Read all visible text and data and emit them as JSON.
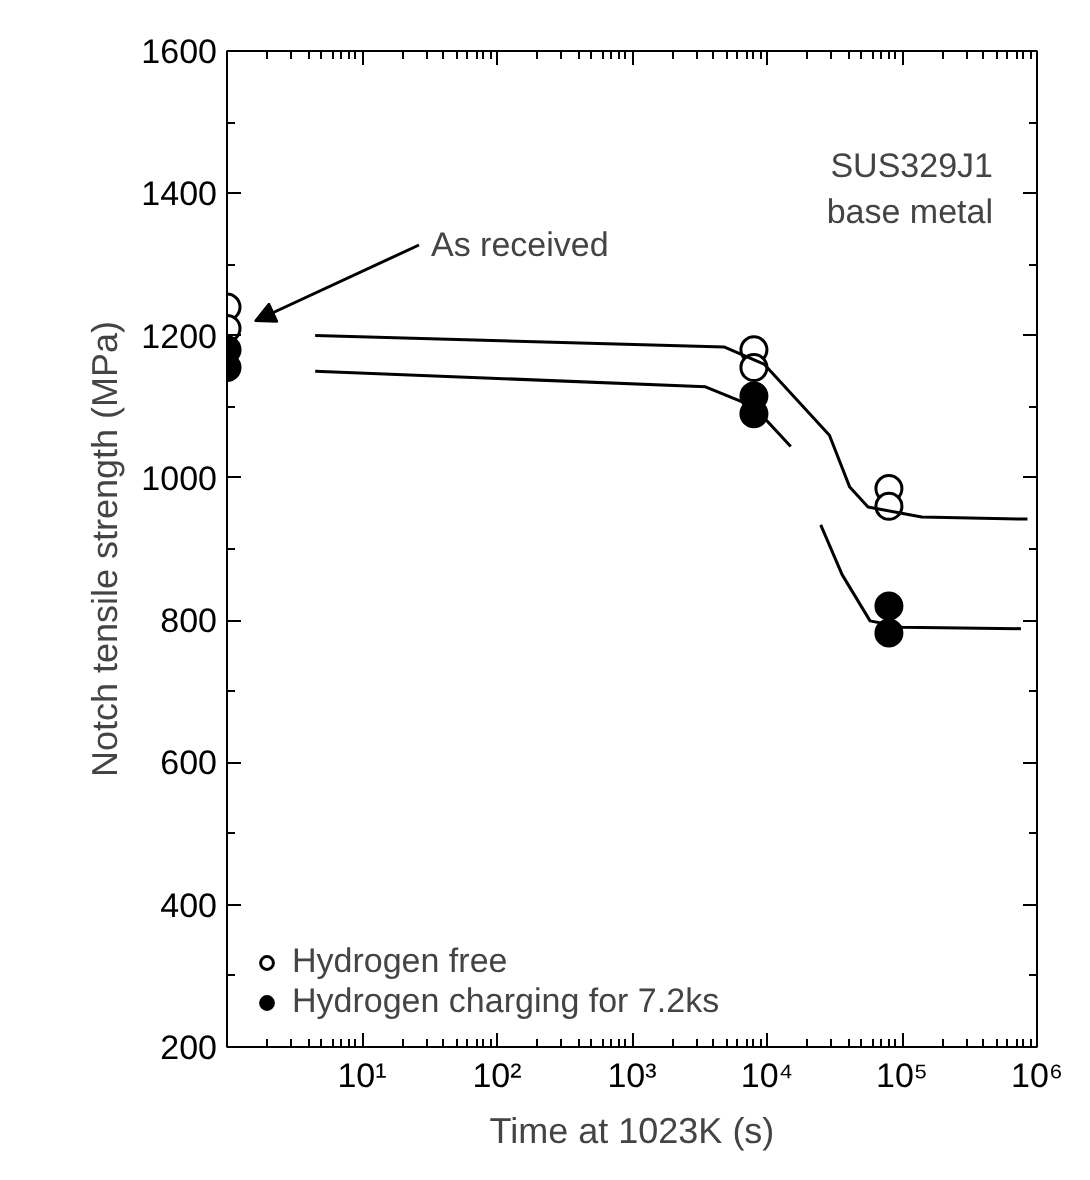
{
  "chart_data": {
    "type": "scatter",
    "xlabel": "Time at 1023K (s)",
    "ylabel": "Notch tensile strength (MPa)",
    "xlim": [
      1,
      1000000
    ],
    "ylim": [
      200,
      1600
    ],
    "log": "x",
    "xticks": [
      {
        "value": 10,
        "label": "10¹"
      },
      {
        "value": 100,
        "label": "10²"
      },
      {
        "value": 1000,
        "label": "10³"
      },
      {
        "value": 10000,
        "label": "10⁴"
      },
      {
        "value": 100000,
        "label": "10⁵"
      },
      {
        "value": 1000000,
        "label": "10⁶"
      }
    ],
    "yticks": [
      200,
      400,
      600,
      800,
      1000,
      1200,
      1400,
      1600
    ],
    "grid": false,
    "legend": "bottom left",
    "annotations": [
      "As received",
      "SUS329J1\nbase metal"
    ],
    "series": [
      {
        "name": "Hydrogen free",
        "marker": "circle",
        "color": "#ffffff",
        "x": [
          1,
          1,
          8000,
          8000,
          80000,
          80000
        ],
        "values": [
          1240,
          1210,
          1180,
          1155,
          985,
          960
        ]
      },
      {
        "name": "Hydrogen charging for 7.2ks",
        "marker": "circle",
        "color": "#000000",
        "x": [
          1,
          1,
          8000,
          8000,
          80000,
          80000
        ],
        "values": [
          1180,
          1155,
          1115,
          1090,
          820,
          782
        ]
      },
      {
        "type": "line",
        "marker": "none",
        "color": "#000000",
        "x": [
          4.5,
          4800,
          9500,
          29000,
          41000,
          56000,
          140000,
          850000
        ],
        "values": [
          1200,
          1184,
          1160,
          1060,
          987,
          959,
          945,
          942
        ]
      },
      {
        "type": "line",
        "marker": "none",
        "color": "#000000",
        "x": [
          4.5,
          3500,
          8000,
          15000,
          22000,
          25000,
          36000,
          58000,
          100000,
          760000
        ],
        "values": [
          1150,
          1128,
          1100,
          1044,
          null,
          934,
          864,
          799,
          790,
          788
        ]
      }
    ]
  }
}
